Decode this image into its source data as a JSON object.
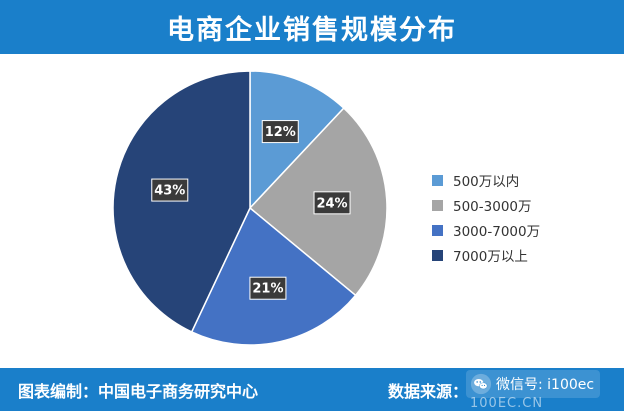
{
  "chart_data": {
    "type": "pie",
    "title": "电商企业销售规模分布",
    "categories": [
      "500万以内",
      "500-3000万",
      "3000-7000万",
      "7000万以上"
    ],
    "values": [
      12,
      24,
      21,
      43
    ],
    "value_labels": [
      "12%",
      "24%",
      "21%",
      "43%"
    ],
    "colors": [
      "#5b9bd5",
      "#a5a5a5",
      "#4472c4",
      "#264478"
    ],
    "legend_position": "right",
    "start_angle_deg": 0,
    "direction": "clockwise"
  },
  "footer": {
    "left_text": "图表编制：中国电子商务研究中心",
    "right_label": "数据来源：",
    "watermark": "微信号: i100ec",
    "site": "100EC.CN"
  },
  "icons": {
    "watermark_icon": "wechat-icon"
  }
}
